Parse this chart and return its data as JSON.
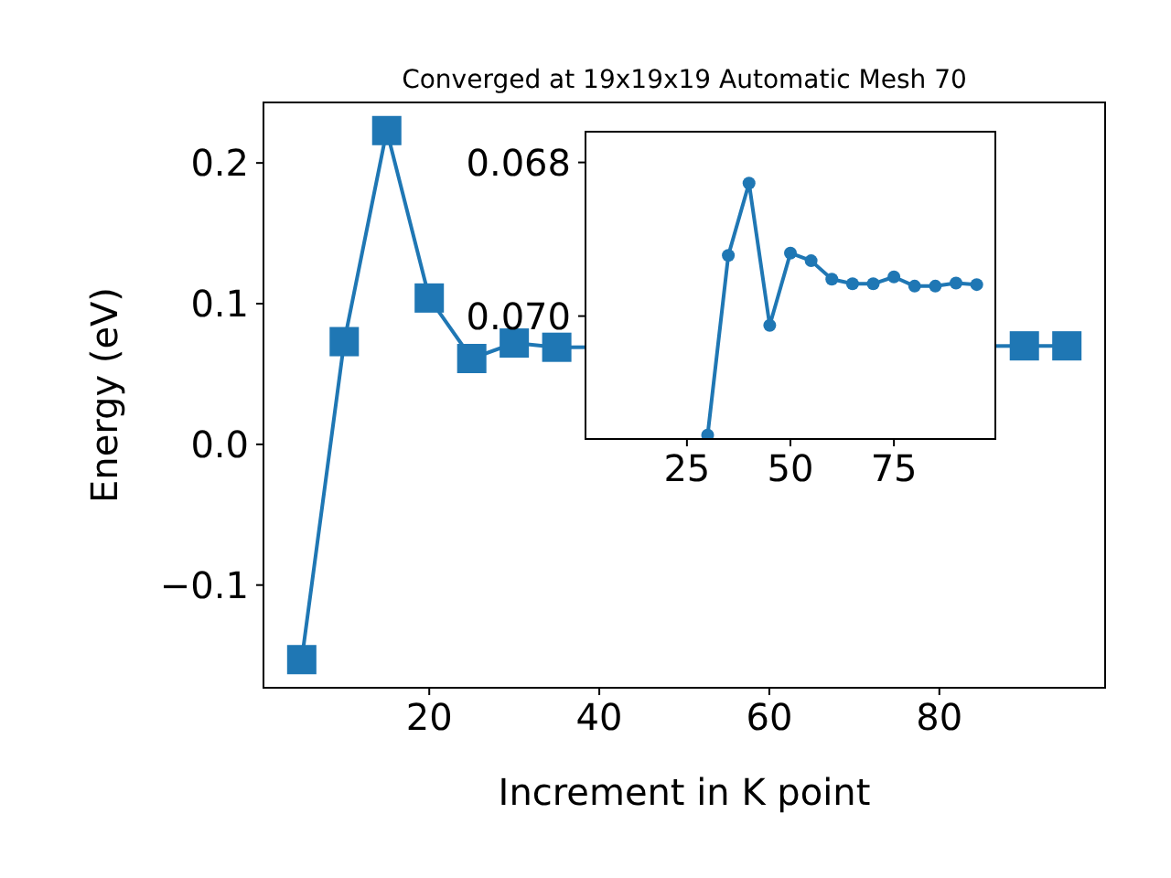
{
  "chart_data": [
    {
      "type": "line",
      "title": "Converged at 19x19x19 Automatic Mesh 70",
      "xlabel": "Increment in K point",
      "ylabel": "Energy (eV)",
      "x": [
        5,
        10,
        15,
        20,
        25,
        30,
        35,
        90,
        95
      ],
      "series": [
        {
          "color": "#1f77b4",
          "values": [
            -0.153,
            0.073,
            0.223,
            0.104,
            0.061,
            0.072,
            0.069,
            0.07,
            0.07
          ]
        }
      ],
      "xlim": [
        0.5,
        99.5
      ],
      "ylim": [
        -0.173,
        0.243
      ],
      "xticks": [
        20,
        40,
        60,
        80
      ],
      "yticks": [
        {
          "value": -0.1,
          "label": "−0.1"
        },
        {
          "value": 0,
          "label": "0.0"
        },
        {
          "value": 0.1,
          "label": "0.1"
        },
        {
          "value": 0.2,
          "label": "0.2"
        }
      ],
      "marker": "square",
      "grid": false
    },
    {
      "type": "line",
      "x": [
        30,
        35,
        40,
        45,
        50,
        55,
        60,
        65,
        70,
        75,
        80,
        85,
        90,
        95
      ],
      "series": [
        {
          "color": "#1f77b4",
          "values": [
            0.07155,
            0.06921,
            0.06827,
            0.07012,
            0.06918,
            0.06928,
            0.06952,
            0.06958,
            0.06958,
            0.06949,
            0.06961,
            0.06961,
            0.06957,
            0.06959
          ]
        }
      ],
      "xlim": [
        0.5,
        99.5
      ],
      "ylim": [
        0.0716,
        0.0676
      ],
      "xticks": [
        25,
        50,
        75
      ],
      "yticks": [
        {
          "value": 0.068,
          "label": "0.068"
        },
        {
          "value": 0.07,
          "label": "0.070"
        }
      ],
      "marker": "circle",
      "grid": false
    }
  ]
}
